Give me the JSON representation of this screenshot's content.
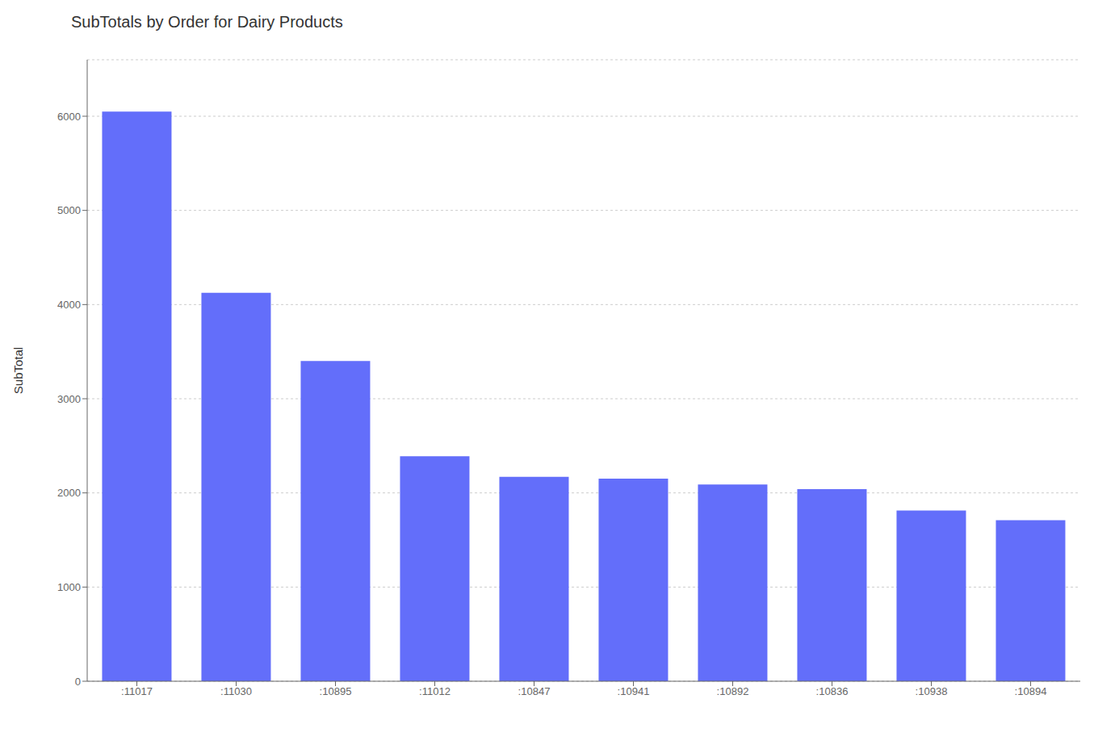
{
  "chart_data": {
    "type": "bar",
    "title": "SubTotals by Order for Dairy Products",
    "y_label": "SubTotal",
    "categories": [
      ":11017",
      ":11030",
      ":10895",
      ":11012",
      ":10847",
      ":10941",
      ":10892",
      ":10836",
      ":10938",
      ":10894"
    ],
    "values": [
      6050.0,
      4125.0,
      3400.0,
      2388.3,
      2170.0,
      2152.5,
      2090.0,
      2040.0,
      1813.9,
      1710.0
    ],
    "color": "#636efa",
    "ylim": [
      0,
      6600
    ],
    "yticks": [
      0,
      1000,
      2000,
      3000,
      4000,
      5000,
      6000
    ],
    "grid": true
  }
}
